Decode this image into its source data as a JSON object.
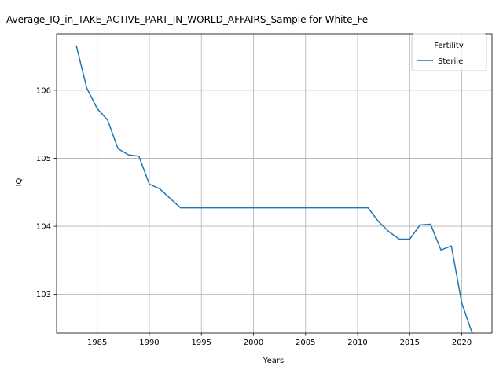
{
  "chart_data": {
    "type": "line",
    "title": "Average_IQ_in_TAKE_ACTIVE_PART_IN_WORLD_AFFAIRS_Sample for White_Fe",
    "xlabel": "Years",
    "ylabel": "IQ",
    "xlim": [
      1981.1,
      2022.9
    ],
    "ylim": [
      102.43,
      106.83
    ],
    "xticks": [
      1985,
      1990,
      1995,
      2000,
      2005,
      2010,
      2015,
      2020
    ],
    "yticks": [
      103,
      104,
      105,
      106
    ],
    "grid": true,
    "legend": {
      "title": "Fertility",
      "placement": "top-right"
    },
    "series": [
      {
        "name": "Sterile",
        "color": "#1f77b4",
        "x": [
          1983,
          1984,
          1985,
          1986,
          1987,
          1988,
          1989,
          1990,
          1991,
          1992,
          1993,
          1994,
          1995,
          1996,
          1997,
          1998,
          1999,
          2000,
          2001,
          2002,
          2003,
          2004,
          2005,
          2006,
          2007,
          2008,
          2009,
          2010,
          2011,
          2012,
          2013,
          2014,
          2015,
          2016,
          2017,
          2018,
          2019,
          2020,
          2021
        ],
        "y": [
          106.65,
          106.03,
          105.73,
          105.56,
          105.14,
          105.05,
          105.03,
          104.62,
          104.55,
          104.41,
          104.27,
          104.27,
          104.27,
          104.27,
          104.27,
          104.27,
          104.27,
          104.27,
          104.27,
          104.27,
          104.27,
          104.27,
          104.27,
          104.27,
          104.27,
          104.27,
          104.27,
          104.27,
          104.27,
          104.07,
          103.92,
          103.81,
          103.81,
          104.02,
          104.03,
          103.65,
          103.71,
          102.87,
          102.43
        ]
      }
    ]
  }
}
